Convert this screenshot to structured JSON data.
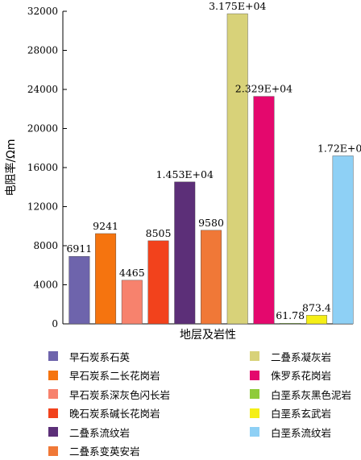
{
  "chart_data": {
    "type": "bar",
    "xlabel": "地层及岩性",
    "ylabel": "电阻率/Ωm",
    "ylim": [
      0,
      32000
    ],
    "yticks": [
      "0",
      "4000",
      "8000",
      "12000",
      "16000",
      "20000",
      "24000",
      "28000",
      "32000"
    ],
    "grid": false,
    "legend_position": "bottom",
    "series": [
      {
        "name": "早石炭系石英",
        "value": 6911,
        "label": "6911",
        "color": "#6e64ac"
      },
      {
        "name": "早石炭系二长花岗岩",
        "value": 9241,
        "label": "9241",
        "color": "#f5740f"
      },
      {
        "name": "早石炭系深灰色闪长岩",
        "value": 4465,
        "label": "4465",
        "color": "#f7826d"
      },
      {
        "name": "晚石炭系碱长花岗岩",
        "value": 8505,
        "label": "8505",
        "color": "#f2421c"
      },
      {
        "name": "二叠系流纹岩",
        "value": 14530,
        "label": "1.453E+04",
        "color": "#5c2f78"
      },
      {
        "name": "二叠系变英安岩",
        "value": 9580,
        "label": "9580",
        "color": "#f07837"
      },
      {
        "name": "二叠系凝灰岩",
        "value": 31750,
        "label": "3.175E+04",
        "color": "#d8d279"
      },
      {
        "name": "侏罗系花岗岩",
        "value": 23290,
        "label": "2.329E+04",
        "color": "#e4086d"
      },
      {
        "name": "白垩系灰黑色泥岩",
        "value": 61.78,
        "label": "61.78",
        "color": "#8fcb3a"
      },
      {
        "name": "白垩系玄武岩",
        "value": 873.4,
        "label": "873.4",
        "color": "#f5ef16"
      },
      {
        "name": "白垩系流纹岩",
        "value": 17200,
        "label": "1.72E+04",
        "color": "#8ed0f5"
      }
    ]
  }
}
